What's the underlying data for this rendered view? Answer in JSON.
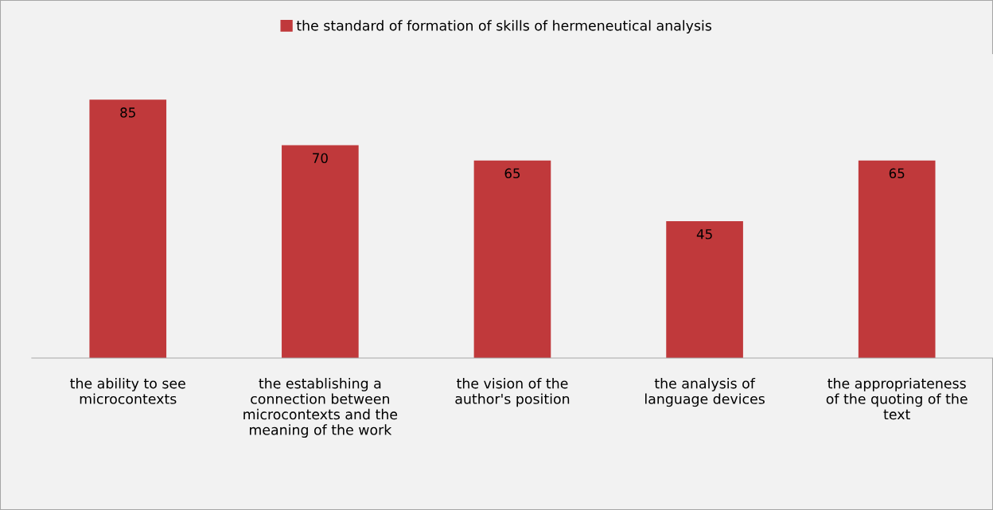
{
  "chart_data": {
    "type": "bar",
    "categories": [
      "the ability to see microcontexts",
      "the establishing a connection between microcontexts and the meaning of the work",
      "the vision of the author's position",
      "the analysis of language devices",
      "the appropriateness of the quoting of the text"
    ],
    "series": [
      {
        "name": "the standard of formation of skills of hermeneutical analysis",
        "color": "#c0393b",
        "values": [
          85,
          70,
          65,
          45,
          65
        ]
      }
    ],
    "ylim": [
      0,
      100
    ],
    "tick_labels": "x",
    "data_labels": true,
    "grid": false,
    "legend": "top"
  }
}
